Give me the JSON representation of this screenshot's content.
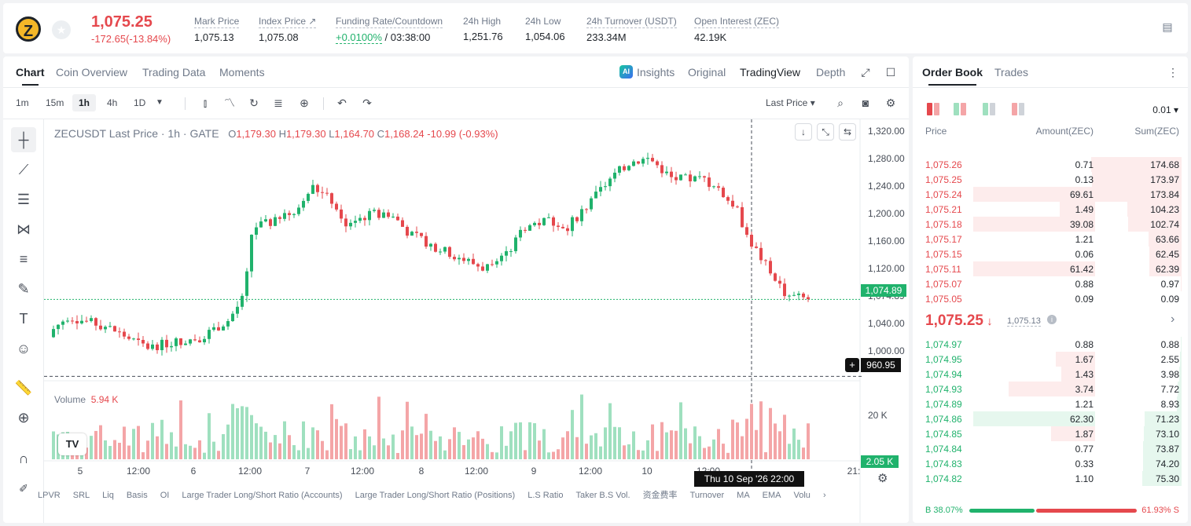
{
  "ticker": {
    "symbol_logo": "Z",
    "last_price": "1,075.25",
    "change": "-172.65(-13.84%)",
    "stats": [
      {
        "label": "Mark Price",
        "value": "1,075.13"
      },
      {
        "label": "Index Price ↗",
        "value": "1,075.08"
      },
      {
        "label": "Funding Rate/Countdown",
        "value_rate": "+0.0100%",
        "value_cd": " / 03:38:00"
      },
      {
        "label": "24h High",
        "value": "1,251.76"
      },
      {
        "label": "24h Low",
        "value": "1,054.06"
      },
      {
        "label": "24h Turnover (USDT)",
        "value": "233.34M"
      },
      {
        "label": "Open Interest (ZEC)",
        "value": "42.19K"
      }
    ]
  },
  "chart_tabs": [
    "Chart",
    "Coin Overview",
    "Trading Data",
    "Moments"
  ],
  "view_tabs": {
    "insights": "Insights",
    "original": "Original",
    "tradingview": "TradingView",
    "depth": "Depth"
  },
  "intervals": [
    "1m",
    "15m",
    "1h",
    "4h",
    "1D"
  ],
  "last_price_select": "Last Price",
  "ohlc": {
    "title": "ZECUSDT Last Price · 1h · GATE",
    "o": "O",
    "ov": "1,179.30",
    "h": "H",
    "hv": "1,179.30",
    "l": "L",
    "lv": "1,164.70",
    "c": "C",
    "cv": "1,168.24",
    "chg": "-10.99 (-0.93%)"
  },
  "volume_label": "Volume",
  "volume_value": "5.94 K",
  "y_ticks": [
    "1,320.00",
    "1,280.00",
    "1,240.00",
    "1,200.00",
    "1,160.00",
    "1,120.00",
    "1,074.89",
    "1,040.00",
    "1,000.00"
  ],
  "y_ticks_values": [
    1320,
    1280,
    1240,
    1200,
    1160,
    1120,
    1080,
    1040,
    1000
  ],
  "vol_tick": "20 K",
  "x_ticks": [
    "5",
    "12:00",
    "6",
    "12:00",
    "7",
    "12:00",
    "8",
    "12:00",
    "9",
    "12:00",
    "10",
    "12:00",
    "21:"
  ],
  "price_tag": "1,074.89",
  "cross_price": "960.95",
  "vol_tag": "2.05 K",
  "time_tag": "Thu 10 Sep '26   22:00",
  "bottom_items": [
    "LPVR",
    "SRL",
    "Liq",
    "Basis",
    "OI",
    "Large Trader Long/Short Ratio (Accounts)",
    "Large Trader Long/Short Ratio (Positions)",
    "L.S Ratio",
    "Taker B.S Vol.",
    "资金费率",
    "Turnover",
    "MA",
    "EMA",
    "Volu"
  ],
  "orderbook": {
    "tabs": [
      "Order Book",
      "Trades"
    ],
    "precision": "0.01",
    "headers": [
      "Price",
      "Amount(ZEC)",
      "Sum(ZEC)"
    ],
    "asks": [
      [
        "1,075.26",
        "0.71",
        "174.68"
      ],
      [
        "1,075.25",
        "0.13",
        "173.97"
      ],
      [
        "1,075.24",
        "69.61",
        "173.84"
      ],
      [
        "1,075.21",
        "1.49",
        "104.23"
      ],
      [
        "1,075.18",
        "39.08",
        "102.74"
      ],
      [
        "1,075.17",
        "1.21",
        "63.66"
      ],
      [
        "1,075.15",
        "0.06",
        "62.45"
      ],
      [
        "1,075.11",
        "61.42",
        "62.39"
      ],
      [
        "1,075.07",
        "0.88",
        "0.97"
      ],
      [
        "1,075.05",
        "0.09",
        "0.09"
      ]
    ],
    "mid_price": "1,075.25",
    "mid_mark": "1,075.13",
    "bids": [
      [
        "1,074.97",
        "0.88",
        "0.88"
      ],
      [
        "1,074.95",
        "1.67",
        "2.55"
      ],
      [
        "1,074.94",
        "1.43",
        "3.98"
      ],
      [
        "1,074.93",
        "3.74",
        "7.72"
      ],
      [
        "1,074.89",
        "1.21",
        "8.93"
      ],
      [
        "1,074.86",
        "62.30",
        "71.23"
      ],
      [
        "1,074.85",
        "1.87",
        "73.10"
      ],
      [
        "1,074.84",
        "0.77",
        "73.87"
      ],
      [
        "1,074.83",
        "0.33",
        "74.20"
      ],
      [
        "1,074.82",
        "1.10",
        "75.30"
      ]
    ],
    "buy_ratio": "38.07%",
    "sell_ratio": "61.93%",
    "b": "B",
    "s": "S"
  },
  "colors": {
    "up": "#20b26c",
    "down": "#e5484d"
  }
}
